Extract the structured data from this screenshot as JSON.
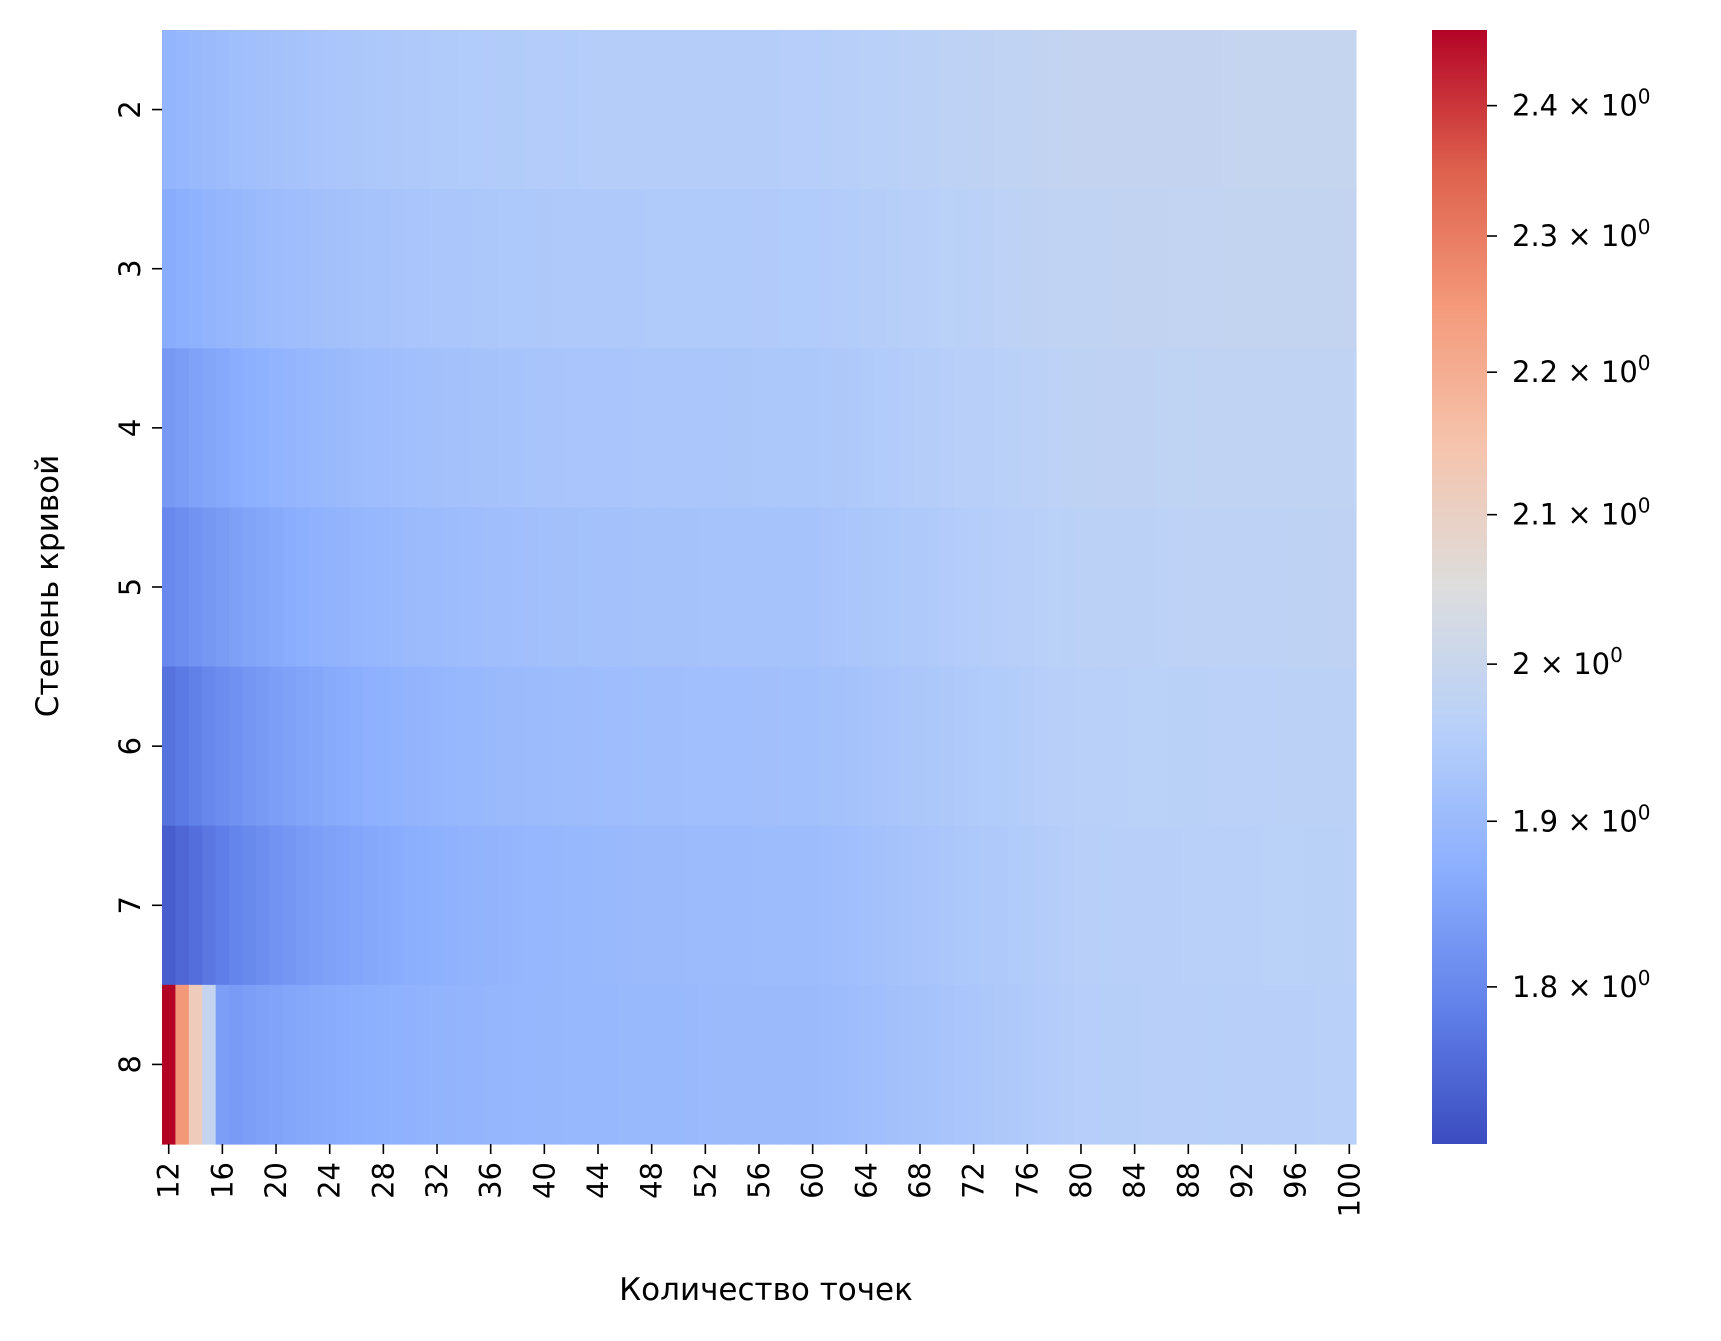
{
  "chart_data": {
    "type": "heatmap",
    "colormap": "coolwarm",
    "color_scale": "log",
    "xlabel": "Количество точек",
    "ylabel": "Степень кривой",
    "x": [
      12,
      13,
      14,
      15,
      16,
      17,
      18,
      19,
      20,
      21,
      22,
      23,
      24,
      25,
      26,
      27,
      28,
      29,
      30,
      31,
      32,
      33,
      34,
      35,
      36,
      37,
      38,
      39,
      40,
      41,
      42,
      43,
      44,
      45,
      46,
      47,
      48,
      49,
      50,
      51,
      52,
      53,
      54,
      55,
      56,
      57,
      58,
      59,
      60,
      61,
      62,
      63,
      64,
      65,
      66,
      67,
      68,
      69,
      70,
      71,
      72,
      73,
      74,
      75,
      76,
      77,
      78,
      79,
      80,
      81,
      82,
      83,
      84,
      85,
      86,
      87,
      88,
      89,
      90,
      91,
      92,
      93,
      94,
      95,
      96,
      97,
      98,
      99,
      100
    ],
    "x_tick_labels": [
      "12",
      "16",
      "20",
      "24",
      "28",
      "32",
      "36",
      "40",
      "44",
      "48",
      "52",
      "56",
      "60",
      "64",
      "68",
      "72",
      "76",
      "80",
      "84",
      "88",
      "92",
      "96",
      "100"
    ],
    "y": [
      2,
      3,
      4,
      5,
      6,
      7,
      8
    ],
    "y_tick_labels": [
      "2",
      "3",
      "4",
      "5",
      "6",
      "7",
      "8"
    ],
    "color_range": [
      1.71,
      2.46
    ],
    "colorbar_ticks": [
      {
        "value": 1.8,
        "mantissa": "1.8"
      },
      {
        "value": 1.9,
        "mantissa": "1.9"
      },
      {
        "value": 2.0,
        "mantissa": "2"
      },
      {
        "value": 2.1,
        "mantissa": "2.1"
      },
      {
        "value": 2.2,
        "mantissa": "2.2"
      },
      {
        "value": 2.3,
        "mantissa": "2.3"
      },
      {
        "value": 2.4,
        "mantissa": "2.4"
      }
    ],
    "colorbar_times": "×",
    "colorbar_base": "10",
    "colorbar_exponent": "0",
    "rows": [
      {
        "degree": 2,
        "start": 1.885,
        "mid": 1.955,
        "end": 1.988,
        "plateau": 1.992,
        "anomalies": []
      },
      {
        "degree": 3,
        "start": 1.865,
        "mid": 1.945,
        "end": 1.982,
        "plateau": 1.988,
        "anomalies": []
      },
      {
        "degree": 4,
        "start": 1.83,
        "mid": 1.935,
        "end": 1.975,
        "plateau": 1.982,
        "anomalies": []
      },
      {
        "degree": 5,
        "start": 1.8,
        "mid": 1.925,
        "end": 1.968,
        "plateau": 1.976,
        "anomalies": []
      },
      {
        "degree": 6,
        "start": 1.765,
        "mid": 1.915,
        "end": 1.962,
        "plateau": 1.97,
        "anomalies": []
      },
      {
        "degree": 7,
        "start": 1.735,
        "mid": 1.905,
        "end": 1.958,
        "plateau": 1.966,
        "anomalies": []
      },
      {
        "degree": 8,
        "start": 1.8,
        "mid": 1.9,
        "end": 1.955,
        "plateau": 1.962,
        "anomalies": [
          {
            "x": 12,
            "value": 2.46
          },
          {
            "x": 13,
            "value": 2.25
          },
          {
            "x": 14,
            "value": 2.12
          },
          {
            "x": 15,
            "value": 1.99
          },
          {
            "x": 16,
            "value": 1.84
          }
        ]
      }
    ]
  }
}
